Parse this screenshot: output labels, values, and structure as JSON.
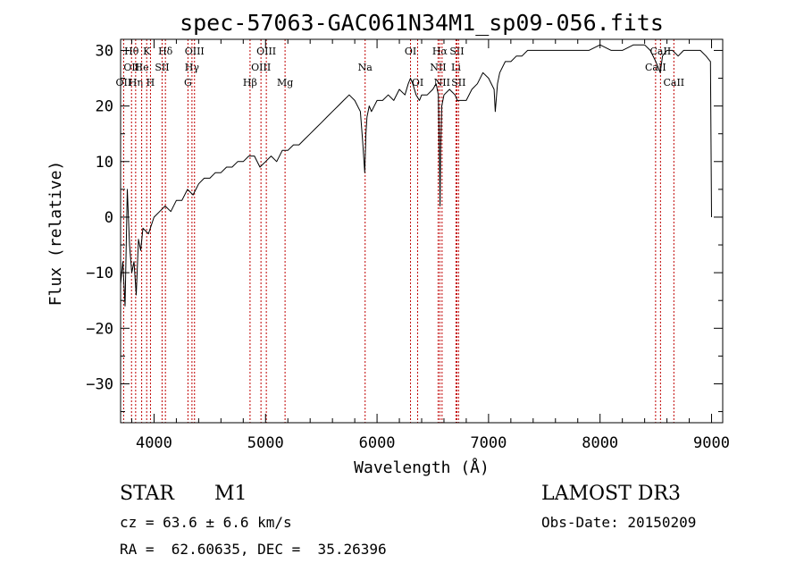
{
  "chart_data": {
    "type": "line",
    "title": "spec-57063-GAC061N34M1_sp09-056.fits",
    "xlabel": "Wavelength (Å)",
    "ylabel": "Flux (relative)",
    "xlim": [
      3700,
      9100
    ],
    "ylim": [
      -37,
      32
    ],
    "xticks": [
      4000,
      5000,
      6000,
      7000,
      8000,
      9000
    ],
    "xtick_labels": [
      "4000",
      "5000",
      "6000",
      "7000",
      "8000",
      "9000"
    ],
    "yticks": [
      -30,
      -20,
      -10,
      0,
      10,
      20,
      30
    ],
    "ytick_labels": [
      "−30",
      "−20",
      "−10",
      "0",
      "10",
      "20",
      "30"
    ],
    "series": [
      {
        "name": "flux",
        "x": [
          3700,
          3720,
          3740,
          3760,
          3780,
          3800,
          3820,
          3840,
          3860,
          3880,
          3900,
          3950,
          4000,
          4050,
          4100,
          4150,
          4200,
          4250,
          4300,
          4350,
          4400,
          4450,
          4500,
          4550,
          4600,
          4650,
          4700,
          4750,
          4800,
          4850,
          4900,
          4950,
          5000,
          5050,
          5100,
          5150,
          5200,
          5250,
          5300,
          5350,
          5400,
          5450,
          5500,
          5550,
          5600,
          5650,
          5700,
          5750,
          5800,
          5850,
          5870,
          5890,
          5900,
          5910,
          5930,
          5950,
          6000,
          6050,
          6100,
          6150,
          6200,
          6250,
          6280,
          6300,
          6320,
          6350,
          6380,
          6400,
          6450,
          6500,
          6530,
          6550,
          6560,
          6565,
          6570,
          6580,
          6600,
          6650,
          6700,
          6720,
          6750,
          6800,
          6850,
          6900,
          6950,
          7000,
          7050,
          7060,
          7080,
          7100,
          7150,
          7200,
          7250,
          7300,
          7350,
          7400,
          7450,
          7500,
          7600,
          7700,
          7800,
          7900,
          8000,
          8100,
          8200,
          8300,
          8400,
          8450,
          8500,
          8540,
          8560,
          8600,
          8650,
          8700,
          8750,
          8800,
          8850,
          8900,
          8950,
          8990,
          9000
        ],
        "y": [
          -12,
          -8,
          -16,
          5,
          -5,
          -10,
          -8,
          -14,
          -4,
          -6,
          -2,
          -3,
          0,
          1,
          2,
          1,
          3,
          3,
          5,
          4,
          6,
          7,
          7,
          8,
          8,
          9,
          9,
          10,
          10,
          11,
          11,
          9,
          10,
          11,
          10,
          12,
          12,
          13,
          13,
          14,
          15,
          16,
          17,
          18,
          19,
          20,
          21,
          22,
          21,
          19,
          14,
          8,
          15,
          18,
          20,
          19,
          21,
          21,
          22,
          21,
          23,
          22,
          24,
          25,
          24,
          22,
          21,
          22,
          22,
          23,
          24,
          22,
          10,
          2,
          12,
          20,
          22,
          23,
          22,
          21,
          21,
          21,
          23,
          24,
          26,
          25,
          23,
          19,
          24,
          26,
          28,
          28,
          29,
          29,
          30,
          30,
          30,
          30,
          30,
          30,
          30,
          30,
          31,
          30,
          30,
          31,
          31,
          30,
          28,
          26,
          29,
          30,
          30,
          29,
          30,
          30,
          30,
          30,
          29,
          28,
          0
        ]
      }
    ],
    "line_markers": [
      {
        "wavelength": 3727,
        "labels": [
          "OII"
        ],
        "rows": [
          2
        ]
      },
      {
        "wavelength": 3798,
        "labels": [
          "Hθ",
          "OII"
        ],
        "rows": [
          0,
          1
        ]
      },
      {
        "wavelength": 3835,
        "labels": [
          "Hη"
        ],
        "rows": [
          2
        ]
      },
      {
        "wavelength": 3889,
        "labels": [
          "He"
        ],
        "rows": [
          1
        ]
      },
      {
        "wavelength": 3934,
        "labels": [
          "K"
        ],
        "rows": [
          0
        ]
      },
      {
        "wavelength": 3968,
        "labels": [
          "H"
        ],
        "rows": [
          2
        ]
      },
      {
        "wavelength": 4072,
        "labels": [
          "SII"
        ],
        "rows": [
          1
        ]
      },
      {
        "wavelength": 4102,
        "labels": [
          "Hδ"
        ],
        "rows": [
          0
        ]
      },
      {
        "wavelength": 4304,
        "labels": [
          "G"
        ],
        "rows": [
          2
        ]
      },
      {
        "wavelength": 4340,
        "labels": [
          "Hγ"
        ],
        "rows": [
          1
        ]
      },
      {
        "wavelength": 4363,
        "labels": [
          "OIII"
        ],
        "rows": [
          0
        ]
      },
      {
        "wavelength": 4861,
        "labels": [
          "Hβ"
        ],
        "rows": [
          2
        ]
      },
      {
        "wavelength": 4959,
        "labels": [
          "OIII"
        ],
        "rows": [
          1
        ]
      },
      {
        "wavelength": 5007,
        "labels": [
          "OIII"
        ],
        "rows": [
          0
        ]
      },
      {
        "wavelength": 5175,
        "labels": [
          "Mg"
        ],
        "rows": [
          2
        ]
      },
      {
        "wavelength": 5893,
        "labels": [
          "Na"
        ],
        "rows": [
          1
        ]
      },
      {
        "wavelength": 6300,
        "labels": [
          "OI"
        ],
        "rows": [
          0
        ]
      },
      {
        "wavelength": 6364,
        "labels": [
          "OI"
        ],
        "rows": [
          2
        ]
      },
      {
        "wavelength": 6548,
        "labels": [
          "NII"
        ],
        "rows": [
          1
        ]
      },
      {
        "wavelength": 6563,
        "labels": [
          "Hα"
        ],
        "rows": [
          0
        ]
      },
      {
        "wavelength": 6583,
        "labels": [
          "NII"
        ],
        "rows": [
          2
        ]
      },
      {
        "wavelength": 6708,
        "labels": [
          "Li"
        ],
        "rows": [
          1
        ]
      },
      {
        "wavelength": 6716,
        "labels": [
          "SII"
        ],
        "rows": [
          0
        ]
      },
      {
        "wavelength": 6731,
        "labels": [
          "SII"
        ],
        "rows": [
          2
        ]
      },
      {
        "wavelength": 8498,
        "labels": [
          "CaII"
        ],
        "rows": [
          1
        ]
      },
      {
        "wavelength": 8542,
        "labels": [
          "CaII"
        ],
        "rows": [
          0
        ]
      },
      {
        "wavelength": 8662,
        "labels": [
          "CaII"
        ],
        "rows": [
          2
        ]
      }
    ],
    "colors": {
      "spectrum": "#000000",
      "marker": "#c00000",
      "axis": "#000000"
    }
  },
  "info": {
    "object_type": "STAR",
    "subclass": "M1",
    "survey": "LAMOST DR3",
    "cz": "cz = 63.6 ± 6.6 km/s",
    "obs_date": "Obs-Date: 20150209",
    "coords": "RA =  62.60635, DEC =  35.26396"
  }
}
